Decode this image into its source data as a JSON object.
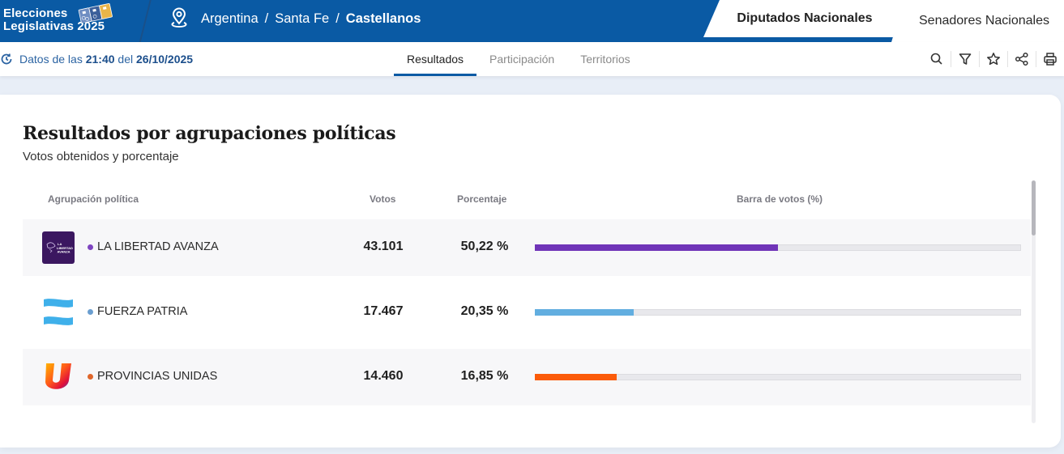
{
  "header": {
    "brand_line1": "Elecciones",
    "brand_line2": "Legislativas 2025",
    "brand_logo_icon": "ballot-cards-icon",
    "breadcrumb": {
      "icon": "location-pin-icon",
      "items": [
        "Argentina",
        "Santa Fe",
        "Castellanos"
      ],
      "separator": "/"
    },
    "chamber_tabs": [
      {
        "label": "Diputados Nacionales",
        "active": true
      },
      {
        "label": "Senadores Nacionales",
        "active": false
      }
    ]
  },
  "subbar": {
    "update_prefix": "Datos de las",
    "update_time": "21:40",
    "update_mid": "del",
    "update_date": "26/10/2025",
    "update_icon": "refresh-clock-icon",
    "tabs": [
      {
        "label": "Resultados",
        "active": true
      },
      {
        "label": "Participación",
        "active": false
      },
      {
        "label": "Territorios",
        "active": false
      }
    ],
    "tools": [
      "search-icon",
      "filter-icon",
      "star-icon",
      "share-icon",
      "print-icon"
    ]
  },
  "card": {
    "title": "Resultados por agrupaciones políticas",
    "subtitle": "Votos obtenidos y porcentaje",
    "columns": {
      "party": "Agrupación política",
      "votes": "Votos",
      "percent": "Porcentaje",
      "bar": "Barra de votos (%)"
    },
    "rows": [
      {
        "party": "LA LIBERTAD AVANZA",
        "votes": "43.101",
        "percent": "50,22 %",
        "percent_value": 50.22,
        "color": "#7034b8",
        "dot_color": "#7e44c0",
        "logo": "la-libertad-avanza-logo"
      },
      {
        "party": "FUERZA PATRIA",
        "votes": "17.467",
        "percent": "20,35 %",
        "percent_value": 20.35,
        "color": "#62aee0",
        "dot_color": "#6a9ed0",
        "logo": "fuerza-patria-logo"
      },
      {
        "party": "PROVINCIAS UNIDAS",
        "votes": "14.460",
        "percent": "16,85 %",
        "percent_value": 16.85,
        "color": "#fb5b0a",
        "dot_color": "#e0662b",
        "logo": "provincias-unidas-logo"
      }
    ]
  }
}
